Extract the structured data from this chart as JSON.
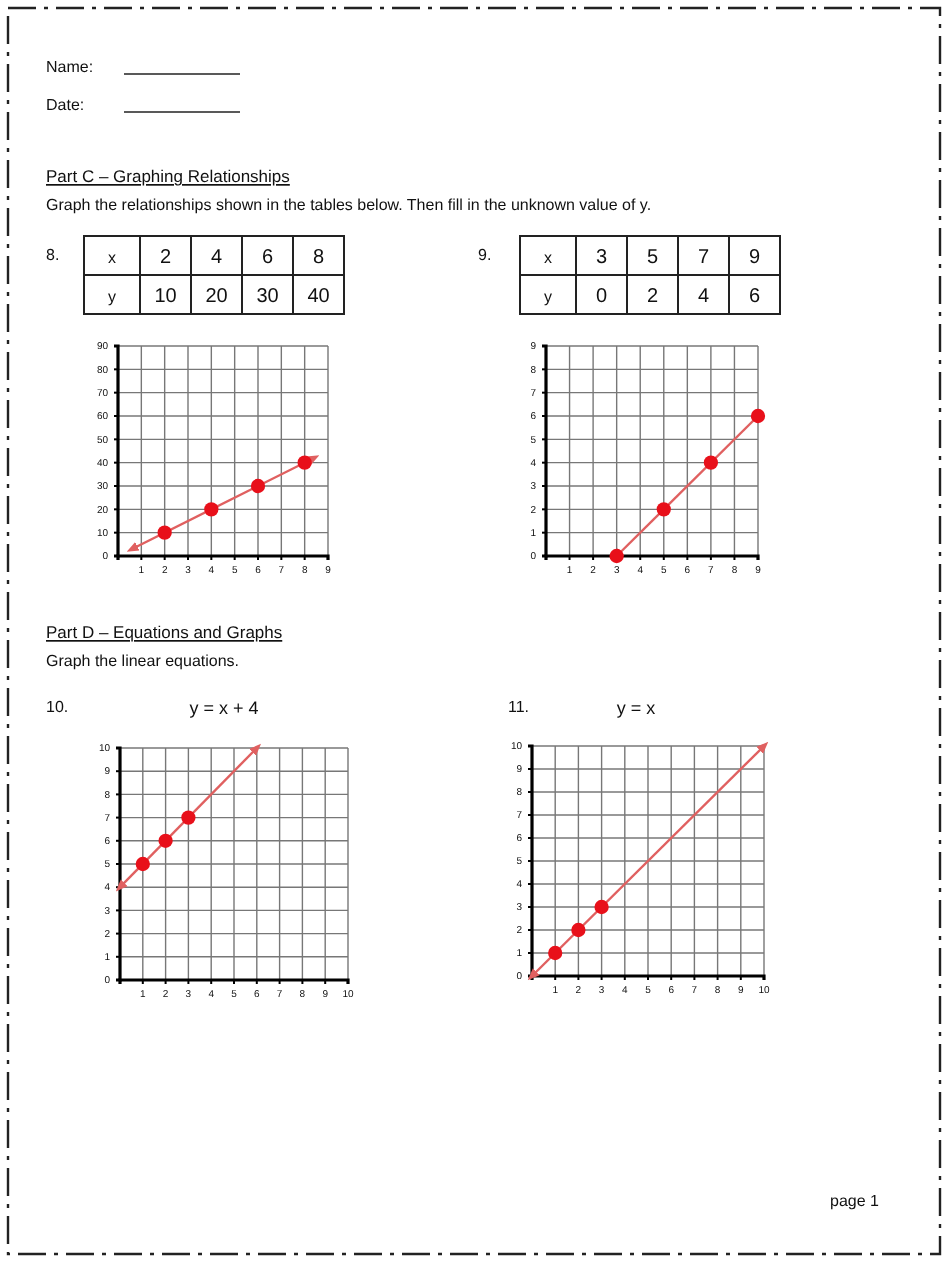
{
  "chart_data": [
    {
      "type": "line",
      "annotations": [
        "Name:",
        "Date:",
        "Part C – Graphing Relationships",
        "Graph the relationships shown in the tables below. Then fill in the unknown value of y.",
        "8.",
        "x",
        "2",
        "4",
        "6",
        "8",
        "y",
        "10",
        "20",
        "30",
        "40"
      ],
      "xlim": [
        0,
        9
      ],
      "xticks": [
        1,
        2,
        3,
        4,
        5,
        6,
        7,
        8,
        9
      ],
      "ylim": [
        0,
        90
      ],
      "yticks": [
        0,
        10,
        20,
        30,
        40,
        50,
        60,
        70,
        80,
        90
      ],
      "grid": true,
      "series": [
        {
          "color": "#e06060",
          "marker": "none",
          "x": [
            0.6,
            8.4
          ],
          "values": [
            3,
            42
          ]
        },
        {
          "type": "scatter",
          "marker": "circle",
          "color": "#e8101a",
          "x": [
            2,
            4,
            6,
            8
          ],
          "values": [
            10,
            20,
            30,
            40
          ]
        }
      ]
    },
    {
      "type": "line",
      "annotations": [
        "9.",
        "x",
        "3",
        "5",
        "7",
        "9",
        "y",
        "0",
        "2",
        "4",
        "6"
      ],
      "xlim": [
        0,
        9
      ],
      "xticks": [
        1,
        2,
        3,
        4,
        5,
        6,
        7,
        8,
        9
      ],
      "ylim": [
        0,
        9
      ],
      "yticks": [
        0,
        1,
        2,
        3,
        4,
        5,
        6,
        7,
        8,
        9
      ],
      "grid": true,
      "series": [
        {
          "color": "#e06060",
          "marker": "none",
          "x": [
            3,
            9
          ],
          "values": [
            0,
            6
          ]
        },
        {
          "type": "scatter",
          "marker": "circle",
          "color": "#e8101a",
          "x": [
            3,
            5,
            7,
            9
          ],
          "values": [
            0,
            2,
            4,
            6
          ]
        }
      ]
    },
    {
      "type": "line",
      "title": "y = x + 4",
      "annotations": [
        "Part D – Equations and Graphs",
        "Graph the linear equations.",
        "10."
      ],
      "xlim": [
        0,
        10
      ],
      "xticks": [
        1,
        2,
        3,
        4,
        5,
        6,
        7,
        8,
        9,
        10
      ],
      "ylim": [
        0,
        10
      ],
      "yticks": [
        0,
        1,
        2,
        3,
        4,
        5,
        6,
        7,
        8,
        9,
        10
      ],
      "grid": true,
      "series": [
        {
          "color": "#e06060",
          "marker": "none",
          "x": [
            0,
            6
          ],
          "values": [
            4,
            10
          ]
        },
        {
          "type": "scatter",
          "marker": "circle",
          "color": "#e8101a",
          "x": [
            1,
            2,
            3
          ],
          "values": [
            5,
            6,
            7
          ]
        }
      ]
    },
    {
      "type": "line",
      "title": "y = x",
      "annotations": [
        "11.",
        "page 1"
      ],
      "xlim": [
        0,
        10
      ],
      "xticks": [
        1,
        2,
        3,
        4,
        5,
        6,
        7,
        8,
        9,
        10
      ],
      "ylim": [
        0,
        10
      ],
      "yticks": [
        0,
        1,
        2,
        3,
        4,
        5,
        6,
        7,
        8,
        9,
        10
      ],
      "grid": true,
      "series": [
        {
          "color": "#e06060",
          "marker": "none",
          "x": [
            0,
            10
          ],
          "values": [
            0,
            10
          ]
        },
        {
          "type": "scatter",
          "marker": "circle",
          "color": "#e8101a",
          "x": [
            1,
            2,
            3
          ],
          "values": [
            1,
            2,
            3
          ]
        }
      ]
    }
  ]
}
